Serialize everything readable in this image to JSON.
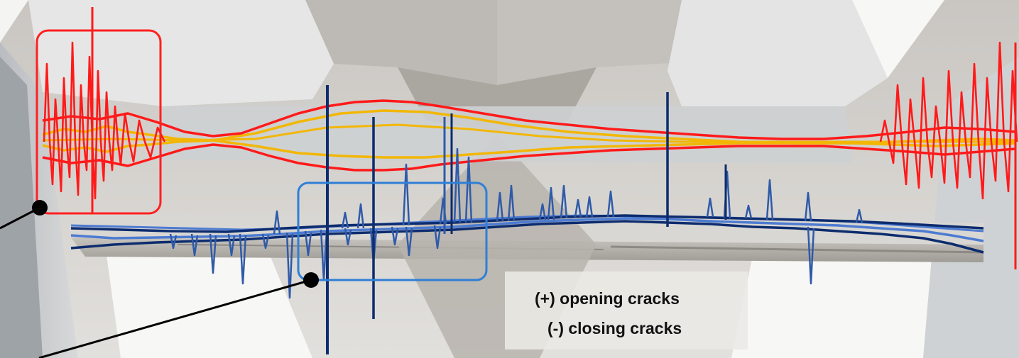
{
  "image": {
    "subject": "interior-concrete-beam-ceiling-with-signal-overlays",
    "legend": {
      "opening_label": "(+) opening cracks",
      "closing_label": "(-) closing cracks"
    },
    "colors": {
      "red_signal": "#ff1a1a",
      "yellow_signal": "#f2b705",
      "dark_blue_signal": "#0d2c6e",
      "light_blue_signal": "#4d7bd1",
      "red_highlight_box": "#ff2020",
      "blue_highlight_box": "#2f7fd6",
      "callout_line": "#000000",
      "ceiling_grey": "#d6d3cf",
      "window_white": "#f7f7f5",
      "legend_bg": "#ebe9e5"
    }
  }
}
